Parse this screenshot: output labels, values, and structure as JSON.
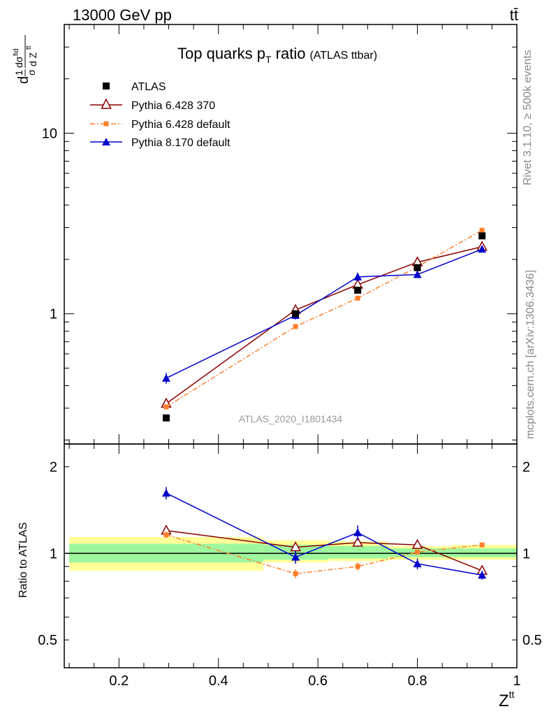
{
  "header": {
    "energy_label": "13000 GeV pp",
    "process_label": "tt̄"
  },
  "side_labels": {
    "rivet": "Rivet 3.1.10, ≥ 500k events",
    "mcplots": "mcplots.cern.ch [arXiv:1306.3436]"
  },
  "colors": {
    "atlas": "#000000",
    "py6_370": "#8b0000",
    "py6_default": "#ff7f2a",
    "py8_default": "#0000cc",
    "band_inner": "#9ef79e",
    "band_outer": "#ffff99"
  },
  "chart_data": [
    {
      "type": "line",
      "title": "Top quarks p",
      "title_sub": "T",
      "title_rest": " ratio",
      "title_small": "(ATLAS ttbar)",
      "ylabel": "d(1/σ)dσ^fid / d Z^tt",
      "yscale": "log",
      "ylim": [
        0.19,
        40
      ],
      "xlim": [
        0.09,
        1.0
      ],
      "y_tick_labels": [
        {
          "value": 1,
          "label": "1"
        },
        {
          "value": 10,
          "label": "10"
        }
      ],
      "reference_label": "ATLAS_2020_I1801434",
      "legend_position": "top-left",
      "series": [
        {
          "name": "ATLAS",
          "key": "atlas",
          "marker": "square-filled",
          "line": "none",
          "x": [
            0.295,
            0.555,
            0.68,
            0.8,
            0.93
          ],
          "y": [
            0.265,
            1.0,
            1.35,
            1.8,
            2.7
          ],
          "err": [
            0.0,
            0.0,
            0.0,
            0.0,
            0.0
          ]
        },
        {
          "name": "Pythia 6.428 370",
          "key": "py6_370",
          "marker": "triangle-open",
          "line": "solid",
          "x": [
            0.295,
            0.555,
            0.68,
            0.8,
            0.93
          ],
          "y": [
            0.318,
            1.05,
            1.45,
            1.93,
            2.35
          ],
          "err": [
            0.012,
            0.03,
            0.04,
            0.05,
            0.06
          ]
        },
        {
          "name": "Pythia 6.428 default",
          "key": "py6_default",
          "marker": "square-small",
          "line": "dashdot",
          "x": [
            0.295,
            0.555,
            0.68,
            0.8,
            0.93
          ],
          "y": [
            0.305,
            0.85,
            1.22,
            1.82,
            2.9
          ],
          "err": [
            0.01,
            0.02,
            0.03,
            0.04,
            0.06
          ]
        },
        {
          "name": "Pythia 8.170 default",
          "key": "py8_default",
          "marker": "triangle-filled",
          "line": "solid",
          "x": [
            0.295,
            0.555,
            0.68,
            0.8,
            0.93
          ],
          "y": [
            0.44,
            0.98,
            1.6,
            1.65,
            2.28
          ],
          "err": [
            0.03,
            0.05,
            0.09,
            0.07,
            0.06
          ]
        }
      ]
    },
    {
      "type": "line",
      "ylabel": "Ratio to ATLAS",
      "xlabel": "Z",
      "xlabel_sup": "tt",
      "yscale": "log",
      "ylim": [
        0.4,
        2.4
      ],
      "xlim": [
        0.09,
        1.0
      ],
      "x_tick_labels": [
        {
          "value": 0.2,
          "label": "0.2"
        },
        {
          "value": 0.4,
          "label": "0.4"
        },
        {
          "value": 0.6,
          "label": "0.6"
        },
        {
          "value": 0.8,
          "label": "0.8"
        },
        {
          "value": 1.0,
          "label": "1"
        }
      ],
      "y_tick_labels": [
        {
          "value": 0.5,
          "label": "0.5"
        },
        {
          "value": 1,
          "label": "1"
        },
        {
          "value": 2,
          "label": "2"
        }
      ],
      "reference_line": 1.0,
      "uncertainty_bands": [
        {
          "x0": 0.1,
          "x1": 0.49,
          "inner": [
            0.93,
            1.08
          ],
          "outer": [
            0.87,
            1.14
          ]
        },
        {
          "x0": 0.49,
          "x1": 0.62,
          "inner": [
            0.95,
            1.07
          ],
          "outer": [
            0.93,
            1.11
          ]
        },
        {
          "x0": 0.62,
          "x1": 0.74,
          "inner": [
            0.96,
            1.06
          ],
          "outer": [
            0.94,
            1.1
          ]
        },
        {
          "x0": 0.74,
          "x1": 0.87,
          "inner": [
            0.97,
            1.04
          ],
          "outer": [
            0.95,
            1.06
          ]
        },
        {
          "x0": 0.87,
          "x1": 1.0,
          "inner": [
            0.97,
            1.04
          ],
          "outer": [
            0.95,
            1.07
          ]
        }
      ],
      "series": [
        {
          "name": "Pythia 6.428 370",
          "key": "py6_370",
          "marker": "triangle-open",
          "line": "solid",
          "x": [
            0.295,
            0.555,
            0.68,
            0.8,
            0.93
          ],
          "y": [
            1.2,
            1.05,
            1.09,
            1.07,
            0.87
          ],
          "err": [
            0.04,
            0.03,
            0.03,
            0.03,
            0.02
          ]
        },
        {
          "name": "Pythia 6.428 default",
          "key": "py6_default",
          "marker": "square-small",
          "line": "dashdot",
          "x": [
            0.295,
            0.555,
            0.68,
            0.8,
            0.93
          ],
          "y": [
            1.16,
            0.85,
            0.9,
            1.01,
            1.07
          ],
          "err": [
            0.03,
            0.03,
            0.03,
            0.02,
            0.02
          ]
        },
        {
          "name": "Pythia 8.170 default",
          "key": "py8_default",
          "marker": "triangle-filled",
          "line": "solid",
          "x": [
            0.295,
            0.555,
            0.68,
            0.8,
            0.93
          ],
          "y": [
            1.62,
            0.97,
            1.18,
            0.92,
            0.84
          ],
          "err": [
            0.08,
            0.05,
            0.07,
            0.04,
            0.03
          ]
        }
      ]
    }
  ]
}
